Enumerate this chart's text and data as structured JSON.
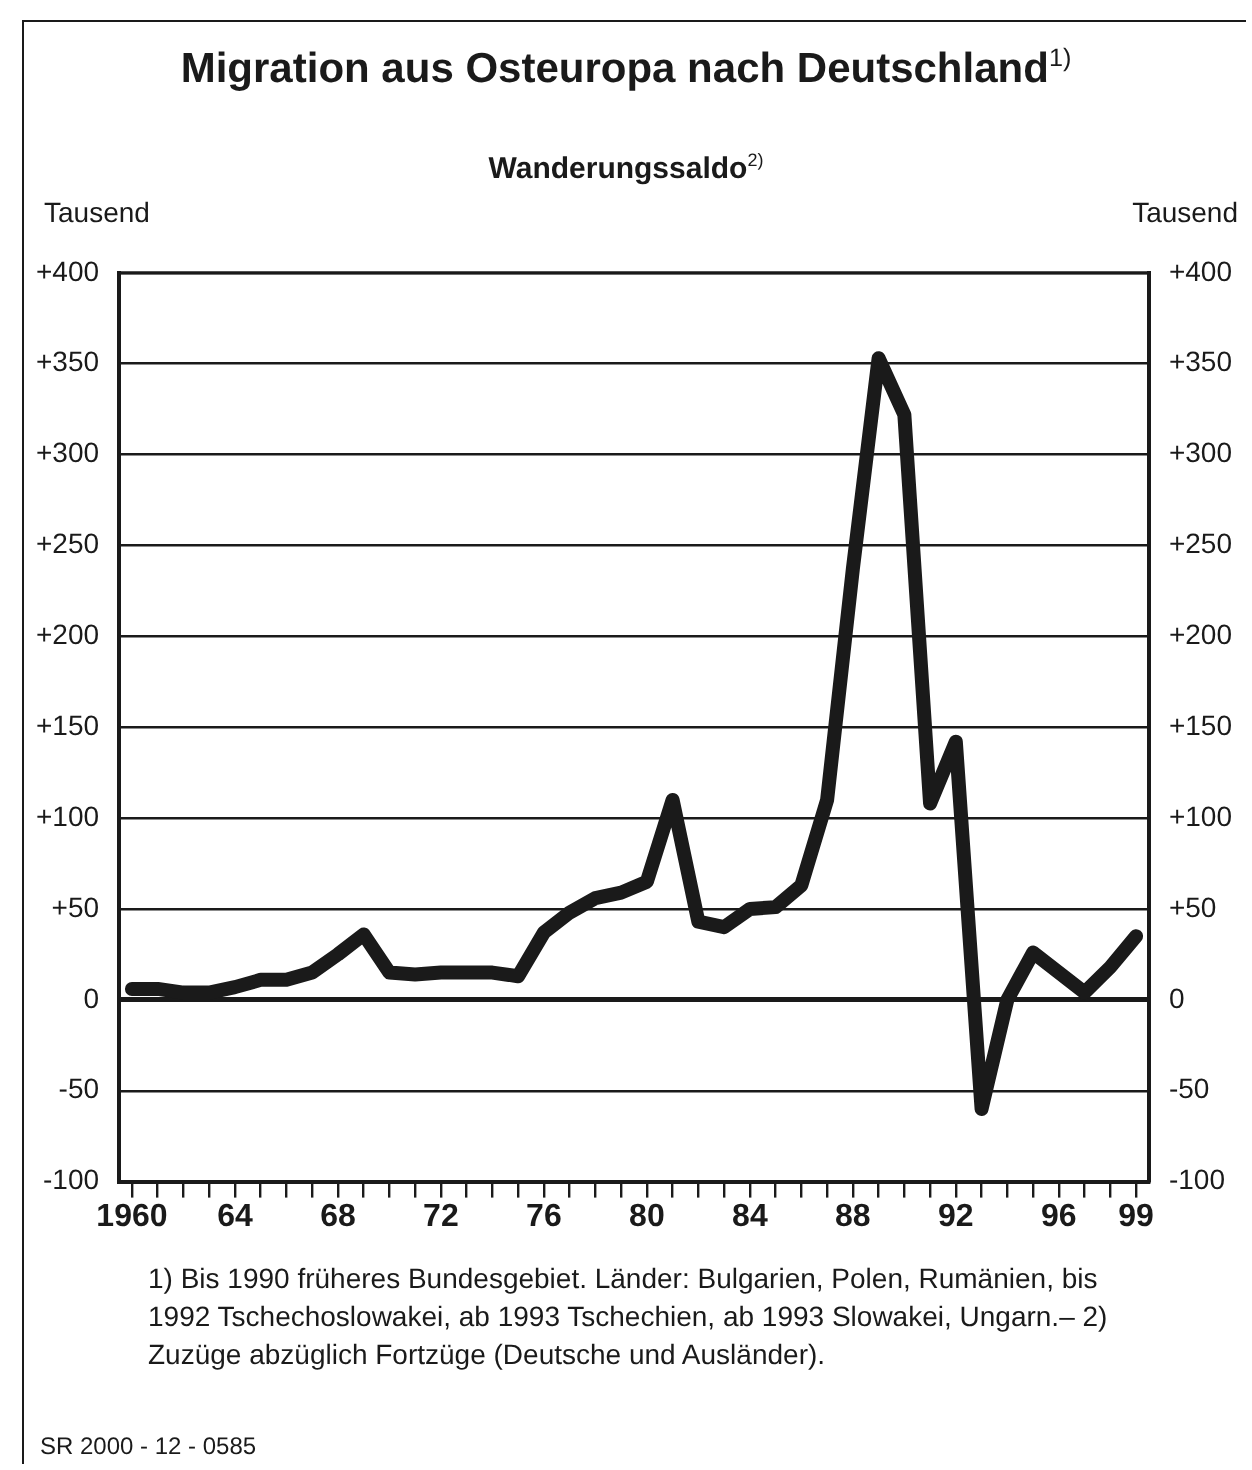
{
  "chart_data": {
    "type": "line",
    "title": "Migration aus Osteuropa nach Deutschland$^{1)}$",
    "subtitle": "Wanderungssaldo$^{2)}$",
    "ylabel": "Tausend",
    "y2label": "Tausend",
    "categories": [
      "1960",
      null,
      null,
      null,
      "64",
      null,
      null,
      null,
      "68",
      null,
      null,
      null,
      "72",
      null,
      null,
      null,
      "76",
      null,
      null,
      null,
      "80",
      null,
      null,
      null,
      "84",
      null,
      null,
      null,
      "88",
      null,
      null,
      null,
      "92",
      null,
      null,
      null,
      "96",
      null,
      null,
      "99"
    ],
    "series": [
      {
        "color": "#1a1a1a",
        "values": [
          6,
          6,
          4,
          4,
          7,
          11,
          11,
          15,
          25,
          36,
          15,
          14,
          15,
          15,
          15,
          13,
          37,
          48,
          56,
          59,
          65,
          110,
          43,
          40,
          50,
          51,
          63,
          110,
          237,
          353,
          322,
          108,
          142,
          -60,
          0,
          26,
          15,
          4,
          18,
          35
        ]
      }
    ],
    "ylim": [
      -100,
      400
    ],
    "yticks": [
      {
        "value": -100,
        "label": "-100"
      },
      {
        "value": -50,
        "label": "-50"
      },
      {
        "value": 0,
        "label": "0"
      },
      {
        "value": 50,
        "label": "+50"
      },
      {
        "value": 100,
        "label": "+100"
      },
      {
        "value": 150,
        "label": "+150"
      },
      {
        "value": 200,
        "label": "+200"
      },
      {
        "value": 250,
        "label": "+250"
      },
      {
        "value": 300,
        "label": "+300"
      },
      {
        "value": 350,
        "label": "+350"
      },
      {
        "value": 400,
        "label": "+400"
      }
    ],
    "y2lim": [
      -100,
      400
    ],
    "y2ticks": [
      {
        "value": -100,
        "label": "-100"
      },
      {
        "value": -50,
        "label": "-50"
      },
      {
        "value": 0,
        "label": "0"
      },
      {
        "value": 50,
        "label": "+50"
      },
      {
        "value": 100,
        "label": "+100"
      },
      {
        "value": 150,
        "label": "+150"
      },
      {
        "value": 200,
        "label": "+200"
      },
      {
        "value": 250,
        "label": "+250"
      },
      {
        "value": 300,
        "label": "+300"
      },
      {
        "value": 350,
        "label": "+350"
      },
      {
        "value": 400,
        "label": "+400"
      }
    ],
    "grid": "y",
    "legend": false,
    "marker": "none",
    "line_style": "solid",
    "annotations": [
      "1) Bis 1990 früheres Bundesgebiet. Länder: Bulgarien, Polen, Rumänien, bis 1992 Tschechoslowakei, ab 1993 Tschechien, ab 1993 Slowakei, Ungarn.– 2) Zuzüge abzüglich Fortzüge (Deutsche und Ausländer).",
      "SR 2000 - 12 - 0585"
    ]
  }
}
